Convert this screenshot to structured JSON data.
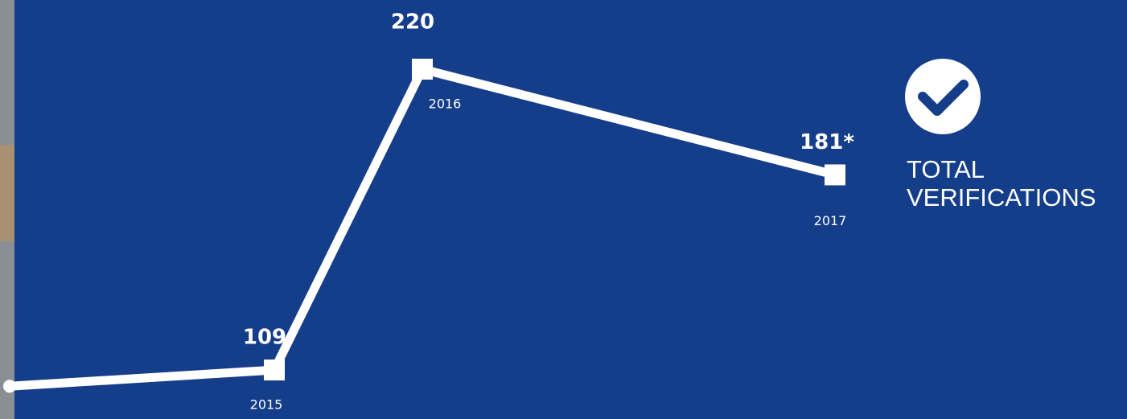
{
  "chart_data": {
    "type": "line",
    "categories": [
      null,
      "2015",
      "2016",
      "2017"
    ],
    "series": [
      {
        "name": "TOTAL VERIFICATIONS",
        "color": "#ffffff",
        "values": [
          103,
          109,
          220,
          181
        ],
        "value_labels": [
          null,
          "109",
          "220",
          "181*"
        ]
      }
    ],
    "ylim": [
      80,
      230
    ]
  }
}
